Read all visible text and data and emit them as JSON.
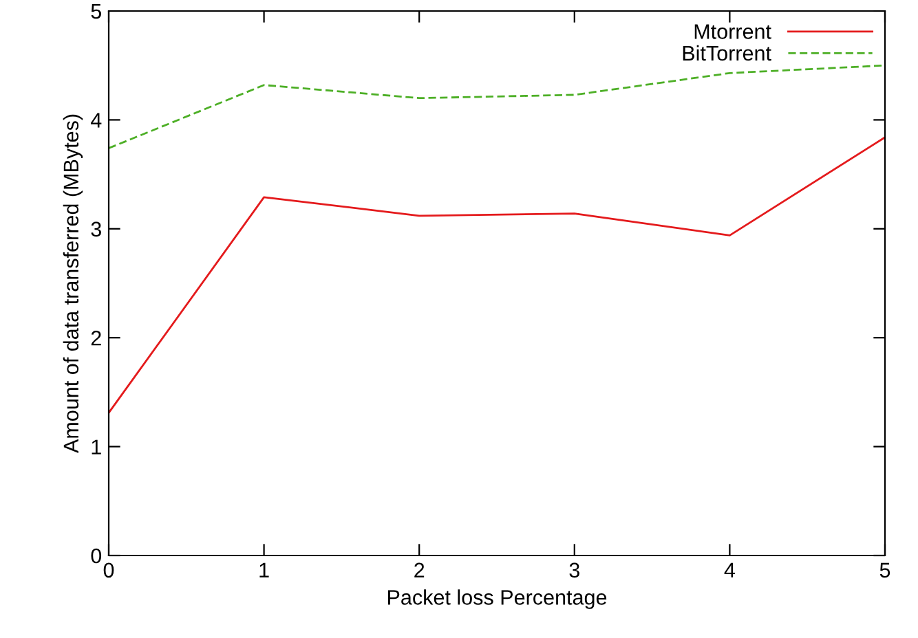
{
  "chart_data": {
    "type": "line",
    "xlabel": "Packet loss Percentage",
    "ylabel": "Amount of data transferred (MBytes)",
    "x": [
      0,
      1,
      2,
      3,
      4,
      5
    ],
    "series": [
      {
        "name": "Mtorrent",
        "color": "#e41a1c",
        "values": [
          1.31,
          3.29,
          3.12,
          3.14,
          2.94,
          3.84
        ],
        "line_style": "solid"
      },
      {
        "name": "BitTorrent",
        "color": "#4daf26",
        "values": [
          3.74,
          4.32,
          4.2,
          4.23,
          4.43,
          4.5
        ],
        "line_style": "dashed"
      }
    ],
    "xlim": [
      0,
      5
    ],
    "xticks": [
      0,
      1,
      2,
      3,
      4,
      5
    ],
    "ylim": [
      0,
      5
    ],
    "yticks": [
      0,
      1,
      2,
      3,
      4,
      5
    ],
    "legend": "top right",
    "grid": false,
    "marker": "none"
  }
}
